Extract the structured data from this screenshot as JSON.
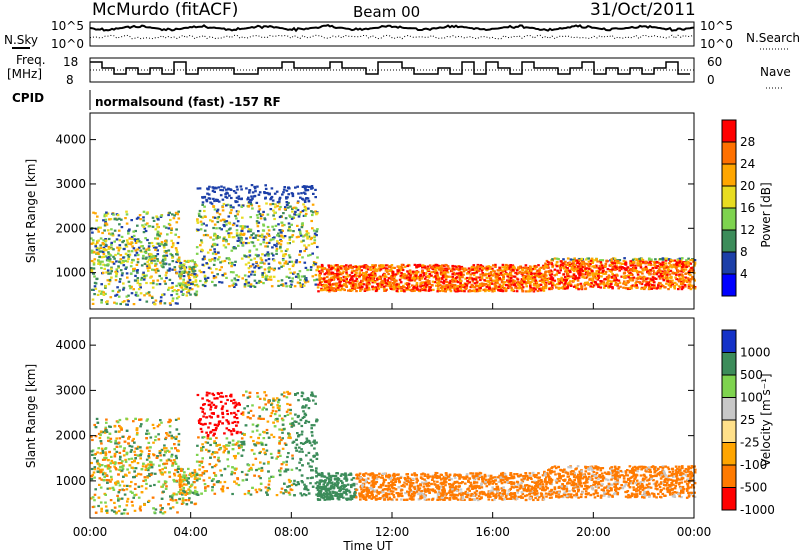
{
  "header": {
    "station": "McMurdo (fitACF)",
    "beam": "Beam 00",
    "date": "31/Oct/2011"
  },
  "top_panels": {
    "nsky_label": "N.Sky",
    "nsky_ticks": [
      "10^5",
      "10^0"
    ],
    "nsearch_label": "N.Search",
    "nsearch_ticks": [
      "10^5",
      "10^0"
    ],
    "freq_label_line1": "Freq.",
    "freq_label_line2": "[MHz]",
    "freq_ticks": [
      "18",
      "8"
    ],
    "nave_label": "Nave",
    "nave_ticks": [
      "60",
      "0"
    ],
    "cpid_label": "CPID",
    "cpid_text": "normalsound (fast) -157 RF"
  },
  "chart_data": [
    {
      "type": "heatmap",
      "name": "power",
      "ylabel": "Slant Range [km]",
      "y_ticks": [
        1000,
        2000,
        3000,
        4000
      ],
      "ylim": [
        180,
        4600
      ],
      "colorbar_label": "Power [dB]",
      "colorbar_ticks": [
        "28",
        "24",
        "20",
        "16",
        "12",
        "8",
        "4"
      ],
      "colorbar_colors": [
        "#ff0000",
        "#ff7000",
        "#ffa600",
        "#e8dc20",
        "#7ed34f",
        "#3c8c5a",
        "#1c3fa8",
        "#0000ff"
      ],
      "xlabel": "",
      "x_ticks": [
        "00:00",
        "04:00",
        "08:00",
        "12:00",
        "16:00",
        "20:00",
        "00:00"
      ]
    },
    {
      "type": "heatmap",
      "name": "velocity",
      "ylabel": "Slant Range [km]",
      "y_ticks": [
        1000,
        2000,
        3000,
        4000
      ],
      "ylim": [
        180,
        4600
      ],
      "colorbar_label": "Velocity [m s⁻¹]",
      "colorbar_ticks": [
        "1000",
        "500",
        "100",
        "25",
        "-25",
        "-100",
        "-500",
        "-1000"
      ],
      "colorbar_colors": [
        "#1432c8",
        "#3c8c5a",
        "#7ed34f",
        "#c8c8c8",
        "#ffe08a",
        "#ffa500",
        "#ff7a00",
        "#ff0000"
      ],
      "xlabel": "Time UT",
      "x_ticks": [
        "00:00",
        "04:00",
        "08:00",
        "12:00",
        "16:00",
        "20:00",
        "00:00"
      ],
      "xlim_hours": [
        0,
        24
      ]
    }
  ]
}
